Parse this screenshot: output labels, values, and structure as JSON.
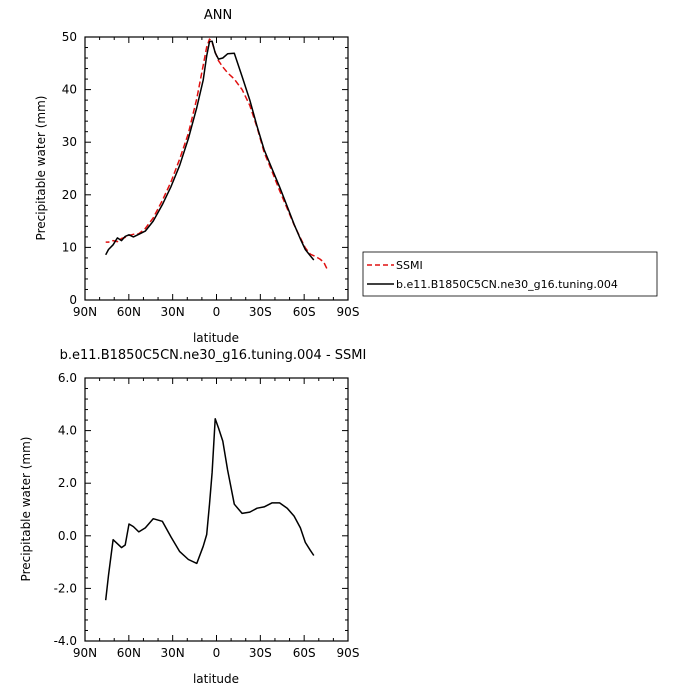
{
  "chart_data": [
    {
      "type": "line",
      "title": "ANN",
      "xlabel": "latitude",
      "ylabel": "Precipitable water (mm)",
      "xlim": [
        90,
        -90
      ],
      "ylim": [
        0,
        50
      ],
      "x_ticks": [
        90,
        60,
        30,
        0,
        -30,
        -60,
        -90
      ],
      "x_tick_labels": [
        "90N",
        "60N",
        "30N",
        "0",
        "30S",
        "60S",
        "90S"
      ],
      "y_ticks": [
        0,
        10,
        20,
        30,
        40,
        50
      ],
      "y_tick_labels": [
        "0",
        "10",
        "20",
        "30",
        "40",
        "50"
      ],
      "legend": "outside-right",
      "series": [
        {
          "name": "SSMI",
          "color": "#e01010",
          "dashed": true,
          "x": [
            -75.5,
            -73.4,
            -70.7,
            -67.4,
            -64.2,
            -60.8,
            -57.4,
            -53.1,
            -48.4,
            -43.2,
            -37.9,
            -32.6,
            -27.8,
            -22.8,
            -17.5,
            -12.2,
            -7.6,
            -4.3,
            -1.4,
            0.9,
            3.0,
            4.8,
            6.7,
            9.1,
            13.5,
            19.2,
            25.2,
            31.1,
            37.1,
            43.3,
            48.7,
            53.2,
            56.9,
            59.9,
            62.5,
            65.0,
            67.8,
            70.8,
            73.9,
            75.8
          ],
          "y": [
            6.0,
            7.2,
            7.8,
            8.3,
            8.7,
            9.9,
            11.8,
            14.3,
            17.4,
            20.8,
            24.5,
            28.1,
            32.8,
            37.0,
            40.0,
            42.0,
            43.2,
            44.3,
            45.5,
            47.1,
            49.0,
            49.6,
            48.1,
            44.6,
            38.3,
            31.7,
            26.8,
            22.5,
            18.9,
            15.6,
            13.6,
            12.6,
            12.5,
            12.3,
            11.9,
            11.7,
            11.1,
            11.3,
            11.0,
            11.0
          ]
        },
        {
          "name": "b.e11.B1850C5CN.ne30_g16.tuning.004",
          "color": "#000000",
          "dashed": false,
          "x": [
            -66.6,
            -64.2,
            -60.8,
            -57.4,
            -53.1,
            -48.4,
            -43.2,
            -37.9,
            -32.6,
            -27.8,
            -22.8,
            -17.5,
            -12.2,
            -7.6,
            -4.3,
            -1.4,
            0.9,
            3.0,
            4.8,
            6.7,
            9.1,
            13.5,
            19.2,
            25.2,
            31.1,
            37.1,
            43.3,
            48.7,
            53.2,
            56.9,
            59.9,
            62.5,
            65.0,
            67.8,
            70.8,
            73.9,
            75.8
          ],
          "y": [
            7.6,
            8.4,
            9.6,
            11.6,
            14.4,
            17.8,
            21.5,
            25.0,
            28.6,
            33.0,
            38.0,
            42.5,
            46.9,
            46.8,
            46.0,
            45.8,
            47.0,
            49.2,
            49.1,
            46.4,
            41.8,
            36.6,
            30.7,
            25.6,
            21.6,
            18.1,
            15.0,
            13.1,
            12.5,
            12.0,
            12.4,
            12.1,
            11.3,
            11.8,
            10.5,
            9.6,
            8.6
          ]
        }
      ]
    },
    {
      "type": "line",
      "title": "b.e11.B1850C5CN.ne30_g16.tuning.004 - SSMI",
      "xlabel": "latitude",
      "ylabel": "Precipitable water (mm)",
      "xlim": [
        90,
        -90
      ],
      "ylim": [
        -4.0,
        6.0
      ],
      "x_ticks": [
        90,
        60,
        30,
        0,
        -30,
        -60,
        -90
      ],
      "x_tick_labels": [
        "90N",
        "60N",
        "30N",
        "0",
        "30S",
        "60S",
        "90S"
      ],
      "y_ticks": [
        -4,
        -2,
        0,
        2,
        4,
        6
      ],
      "y_tick_labels": [
        "-4.0",
        "-2.0",
        "0.0",
        "2.0",
        "4.0",
        "6.0"
      ],
      "series": [
        {
          "name": "",
          "color": "#000000",
          "dashed": false,
          "x": [
            -66.6,
            -64.2,
            -60.8,
            -57.4,
            -53.1,
            -48.4,
            -43.2,
            -37.9,
            -32.6,
            -27.8,
            -22.8,
            -17.5,
            -12.2,
            -7.6,
            -4.3,
            -1.4,
            0.9,
            3.0,
            4.8,
            6.7,
            9.1,
            13.5,
            19.2,
            25.2,
            31.1,
            37.1,
            43.3,
            48.7,
            53.2,
            56.9,
            59.9,
            62.5,
            65.0,
            67.8,
            70.8,
            73.9,
            75.8
          ],
          "y": [
            -0.75,
            -0.55,
            -0.25,
            0.3,
            0.75,
            1.05,
            1.25,
            1.25,
            1.1,
            1.05,
            0.9,
            0.85,
            1.2,
            2.5,
            3.6,
            4.1,
            4.45,
            2.4,
            1.2,
            0.05,
            -0.4,
            -1.05,
            -0.9,
            -0.6,
            -0.05,
            0.55,
            0.65,
            0.3,
            0.15,
            0.35,
            0.45,
            -0.35,
            -0.45,
            -0.3,
            -0.15,
            -1.5,
            -2.45
          ]
        }
      ]
    }
  ]
}
